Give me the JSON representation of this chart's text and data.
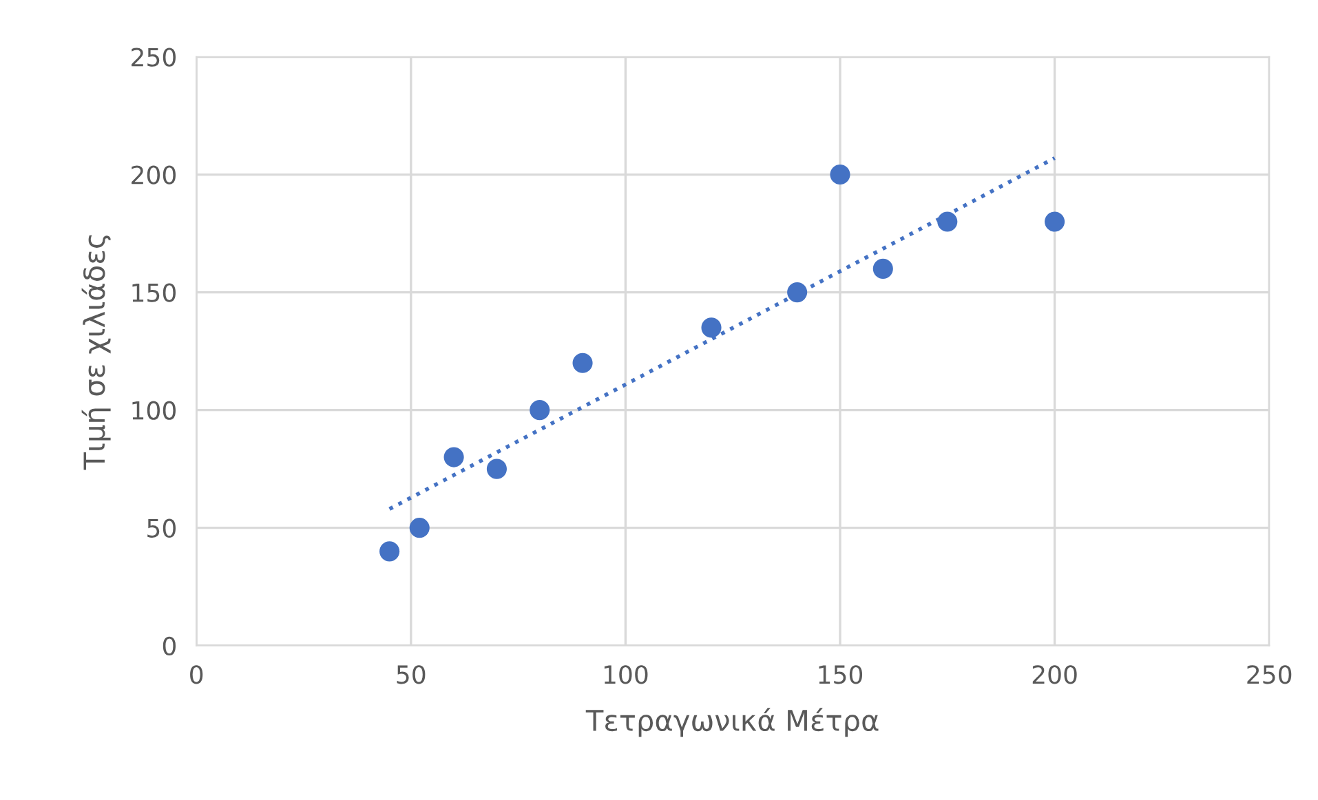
{
  "chart_data": {
    "type": "scatter",
    "xlabel": "Τετραγωνικά Μέτρα",
    "ylabel": "Τιμή σε χιλιάδες",
    "xlim": [
      0,
      250
    ],
    "xticks": [
      0,
      50,
      100,
      150,
      200,
      250
    ],
    "ylim": [
      0,
      250
    ],
    "yticks": [
      0,
      50,
      100,
      150,
      200,
      250
    ],
    "grid": true,
    "series": [
      {
        "marker": "circle",
        "color": "#4472c4",
        "x": [
          45,
          52,
          60,
          70,
          80,
          90,
          120,
          140,
          150,
          160,
          175,
          200
        ],
        "values": [
          40,
          50,
          80,
          75,
          100,
          120,
          135,
          150,
          200,
          160,
          180,
          180
        ]
      },
      {
        "type": "line",
        "marker": "none",
        "line_style": "dotted",
        "color": "#4472c4",
        "x": [
          45,
          200
        ],
        "values": [
          58,
          207
        ]
      }
    ]
  }
}
